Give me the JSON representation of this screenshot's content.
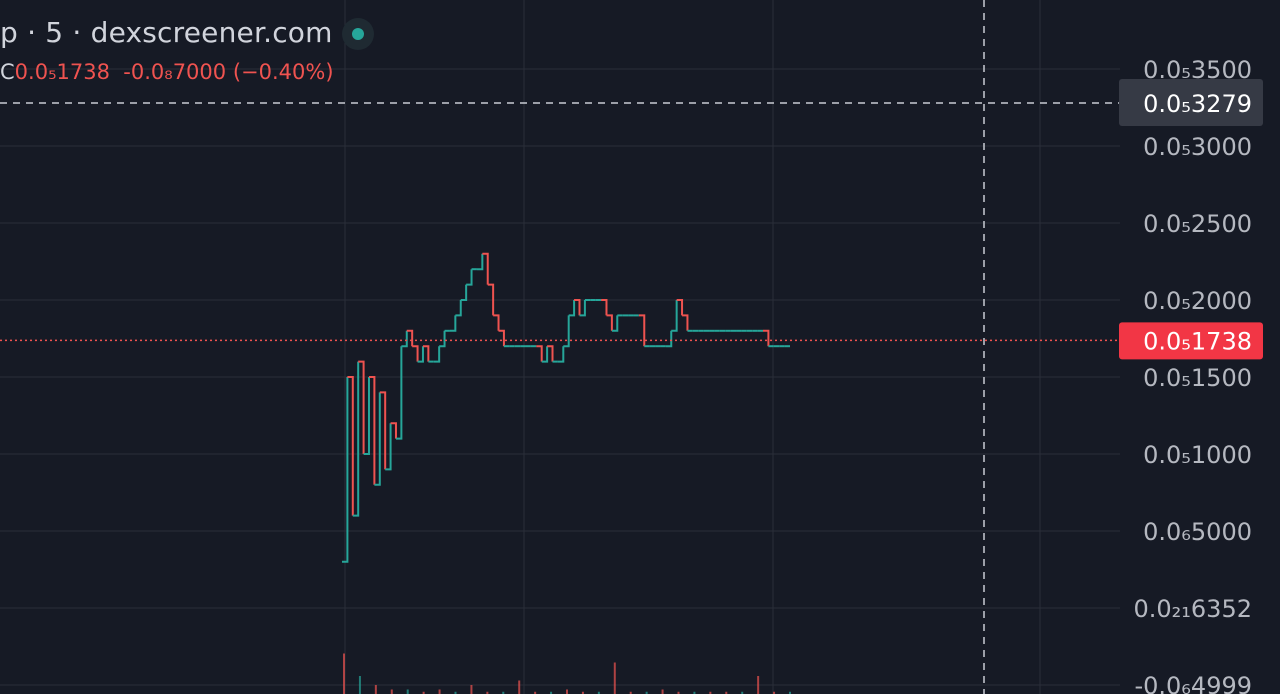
{
  "header": {
    "title": "p · 5 · dexscreener.com",
    "ohlc_label": "C",
    "close_value": "0.0₅1738",
    "change": "-0.0₈7000",
    "change_pct": "(−0.40%)"
  },
  "colors": {
    "background": "#161a25",
    "up": "#26a69a",
    "down": "#ef5350",
    "grid": "#2a2e39",
    "text": "#d1d4dc"
  },
  "axis_labels": [
    "0.0₅3500",
    "0.0₅3000",
    "0.0₅2500",
    "0.0₅2000",
    "0.0₅1500",
    "0.0₅1000",
    "0.0₆5000",
    "0.0₂₁6352",
    "-0.0₆4999"
  ],
  "crosshair_label": "0.0₅3279",
  "last_price_label": "0.0₅1738",
  "chart_data": {
    "type": "line",
    "title": "",
    "xlabel": "",
    "ylabel": "",
    "ylim": [
      -5e-07,
      3.5e-06
    ],
    "y_ticks": [
      3.5e-06,
      3e-06,
      2.5e-06,
      2e-06,
      1.5e-06,
      1e-06,
      5e-07,
      0.0,
      -5e-07
    ],
    "crosshair_y": 3.279e-06,
    "last_price": 1.738e-06,
    "series": [
      {
        "values": [
          3e-07,
          1.5e-06,
          6e-07,
          1.6e-06,
          1e-06,
          1.5e-06,
          8e-07,
          1.4e-06,
          9e-07,
          1.2e-06,
          1.1e-06,
          1.7e-06,
          1.8e-06,
          1.7e-06,
          1.6e-06,
          1.7e-06,
          1.6e-06,
          1.6e-06,
          1.7e-06,
          1.8e-06,
          1.8e-06,
          1.9e-06,
          2e-06,
          2.1e-06,
          2.2e-06,
          2.2e-06,
          2.3e-06,
          2.1e-06,
          1.9e-06,
          1.8e-06,
          1.7e-06,
          1.7e-06,
          1.7e-06,
          1.7e-06,
          1.7e-06,
          1.7e-06,
          1.7e-06,
          1.6e-06,
          1.7e-06,
          1.6e-06,
          1.6e-06,
          1.7e-06,
          1.9e-06,
          2e-06,
          1.9e-06,
          2e-06,
          2e-06,
          2e-06,
          2e-06,
          1.9e-06,
          1.8e-06,
          1.9e-06,
          1.9e-06,
          1.9e-06,
          1.9e-06,
          1.9e-06,
          1.7e-06,
          1.7e-06,
          1.7e-06,
          1.7e-06,
          1.7e-06,
          1.8e-06,
          2e-06,
          1.9e-06,
          1.8e-06,
          1.8e-06,
          1.8e-06,
          1.8e-06,
          1.8e-06,
          1.8e-06,
          1.8e-06,
          1.8e-06,
          1.8e-06,
          1.8e-06,
          1.8e-06,
          1.8e-06,
          1.8e-06,
          1.8e-06,
          1.8e-06,
          1.7e-06,
          1.7e-06,
          1.7e-06,
          1.7e-06,
          1.7e-06
        ]
      }
    ],
    "volume": [
      0.9,
      0.4,
      0.2,
      0.1,
      0.1,
      0.05,
      0.1,
      0.05,
      0.2,
      0.05,
      0.05,
      0.3,
      0.05,
      0.05,
      0.1,
      0.05,
      0.05,
      0.7,
      0.05,
      0.05,
      0.1,
      0.05,
      0.05,
      0.05,
      0.05,
      0.05,
      0.4,
      0.05,
      0.05
    ]
  }
}
